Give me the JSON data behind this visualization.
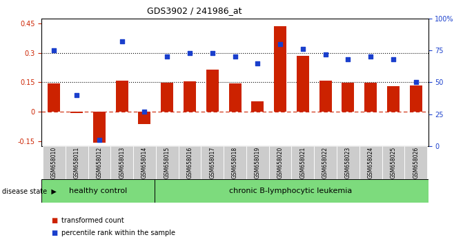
{
  "title": "GDS3902 / 241986_at",
  "samples": [
    "GSM658010",
    "GSM658011",
    "GSM658012",
    "GSM658013",
    "GSM658014",
    "GSM658015",
    "GSM658016",
    "GSM658017",
    "GSM658018",
    "GSM658019",
    "GSM658020",
    "GSM658021",
    "GSM658022",
    "GSM658023",
    "GSM658024",
    "GSM658025",
    "GSM658026"
  ],
  "bar_values": [
    0.145,
    -0.005,
    -0.155,
    0.16,
    -0.06,
    0.148,
    0.155,
    0.215,
    0.145,
    0.055,
    0.435,
    0.285,
    0.16,
    0.148,
    0.148,
    0.13,
    0.135
  ],
  "dot_values_pct": [
    75,
    40,
    5,
    82,
    27,
    70,
    73,
    73,
    70,
    65,
    80,
    76,
    72,
    68,
    70,
    68,
    50
  ],
  "bar_color": "#cc2200",
  "dot_color": "#1a3fcc",
  "healthy_count": 5,
  "leukemia_count": 12,
  "healthy_label": "healthy control",
  "leukemia_label": "chronic B-lymphocytic leukemia",
  "disease_label": "disease state",
  "legend_bar": "transformed count",
  "legend_dot": "percentile rank within the sample",
  "ylim_left": [
    -0.175,
    0.475
  ],
  "ylim_right": [
    0,
    100
  ],
  "yticks_left": [
    -0.15,
    0.0,
    0.15,
    0.3,
    0.45
  ],
  "yticks_right": [
    0,
    25,
    50,
    75,
    100
  ],
  "hlines": [
    0.15,
    0.3
  ],
  "zero_line": 0.0,
  "background_color": "#ffffff",
  "healthy_bg": "#7ddb7d",
  "leukemia_bg": "#7ddb7d",
  "sample_bg": "#cccccc"
}
